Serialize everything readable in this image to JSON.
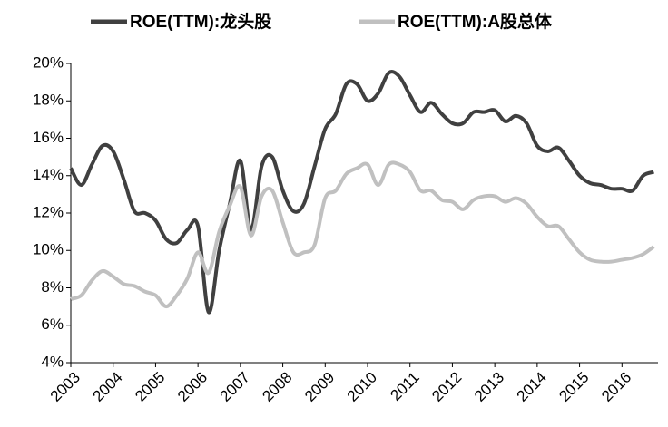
{
  "chart_data": {
    "type": "line",
    "x": [
      2003,
      2003.25,
      2003.5,
      2003.75,
      2004,
      2004.25,
      2004.5,
      2004.75,
      2005,
      2005.25,
      2005.5,
      2005.75,
      2006,
      2006.25,
      2006.5,
      2006.75,
      2007,
      2007.25,
      2007.5,
      2007.75,
      2008,
      2008.25,
      2008.5,
      2008.75,
      2009,
      2009.25,
      2009.5,
      2009.75,
      2010,
      2010.25,
      2010.5,
      2010.75,
      2011,
      2011.25,
      2011.5,
      2011.75,
      2012,
      2012.25,
      2012.5,
      2012.75,
      2013,
      2013.25,
      2013.5,
      2013.75,
      2014,
      2014.25,
      2014.5,
      2014.75,
      2015,
      2015.25,
      2015.5,
      2015.75,
      2016,
      2016.25,
      2016.5,
      2016.75
    ],
    "series": [
      {
        "name": "ROE(TTM):龙头股",
        "color": "#404040",
        "values": [
          14.4,
          13.5,
          14.6,
          15.6,
          15.3,
          13.8,
          12.1,
          12.0,
          11.6,
          10.6,
          10.4,
          11.1,
          11.3,
          6.7,
          10.0,
          12.5,
          14.8,
          11.1,
          14.5,
          15.0,
          13.2,
          12.1,
          12.5,
          14.5,
          16.5,
          17.3,
          18.9,
          18.9,
          18.0,
          18.4,
          19.5,
          19.3,
          18.3,
          17.4,
          17.9,
          17.3,
          16.8,
          16.8,
          17.4,
          17.4,
          17.5,
          16.9,
          17.2,
          16.8,
          15.6,
          15.3,
          15.5,
          14.8,
          14.0,
          13.6,
          13.5,
          13.3,
          13.3,
          13.2,
          14.0,
          14.2
        ]
      },
      {
        "name": "ROE(TTM):A股总体",
        "color": "#c0c0c0",
        "values": [
          7.4,
          7.6,
          8.4,
          8.9,
          8.6,
          8.2,
          8.1,
          7.8,
          7.6,
          7.0,
          7.6,
          8.5,
          9.9,
          8.8,
          11.0,
          12.4,
          13.4,
          10.8,
          12.9,
          13.2,
          11.5,
          9.9,
          9.9,
          10.3,
          12.8,
          13.2,
          14.1,
          14.4,
          14.6,
          13.5,
          14.6,
          14.6,
          14.2,
          13.2,
          13.2,
          12.7,
          12.6,
          12.2,
          12.7,
          12.9,
          12.9,
          12.6,
          12.8,
          12.5,
          11.8,
          11.3,
          11.3,
          10.6,
          9.9,
          9.5,
          9.4,
          9.4,
          9.5,
          9.6,
          9.8,
          10.2
        ]
      }
    ],
    "xlim": [
      2003,
      2016.85
    ],
    "xticks": [
      2003,
      2004,
      2005,
      2006,
      2007,
      2008,
      2009,
      2010,
      2011,
      2012,
      2013,
      2014,
      2015,
      2016
    ],
    "ylim": [
      4,
      20
    ],
    "yticks": [
      {
        "value": 4,
        "label": "4%"
      },
      {
        "value": 6,
        "label": "6%"
      },
      {
        "value": 8,
        "label": "8%"
      },
      {
        "value": 10,
        "label": "10%"
      },
      {
        "value": 12,
        "label": "12%"
      },
      {
        "value": 14,
        "label": "14%"
      },
      {
        "value": 16,
        "label": "16%"
      },
      {
        "value": 18,
        "label": "18%"
      },
      {
        "value": 20,
        "label": "20%"
      }
    ],
    "grid": false,
    "legend": "top"
  }
}
